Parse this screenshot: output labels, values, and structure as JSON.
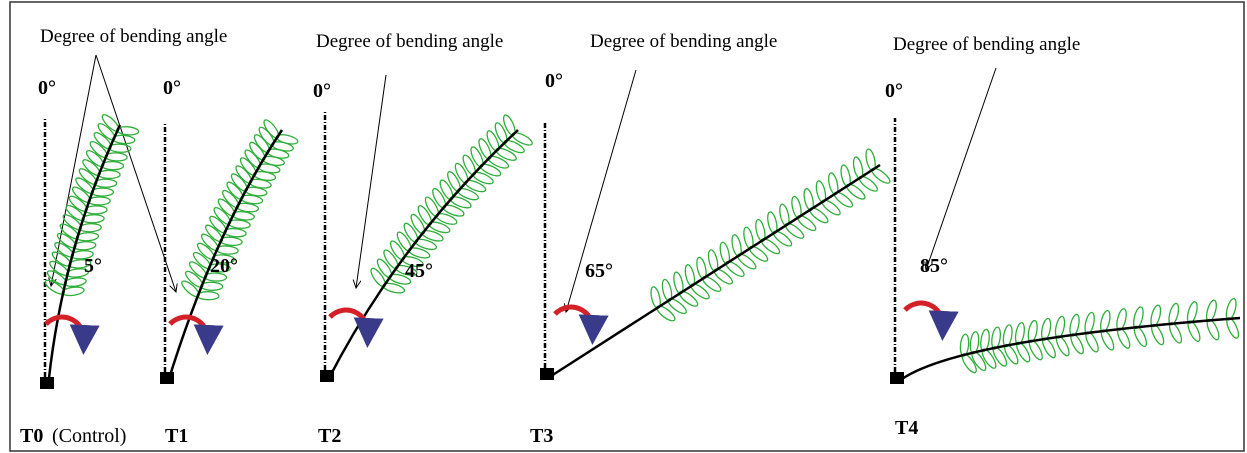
{
  "annotations": [
    "Degree of bending angle",
    "Degree of bending angle",
    "Degree of bending angle",
    "Degree of bending angle"
  ],
  "panels": [
    {
      "label": "T0",
      "note": "(Control)",
      "zero": "0°",
      "angle": "5°"
    },
    {
      "label": "T1",
      "zero": "0°",
      "angle": "20°"
    },
    {
      "label": "T2",
      "zero": "0°",
      "angle": "45°"
    },
    {
      "label": "T3",
      "zero": "0°",
      "angle": "65°"
    },
    {
      "label": "T4",
      "zero": "0°",
      "angle": "85°"
    }
  ]
}
